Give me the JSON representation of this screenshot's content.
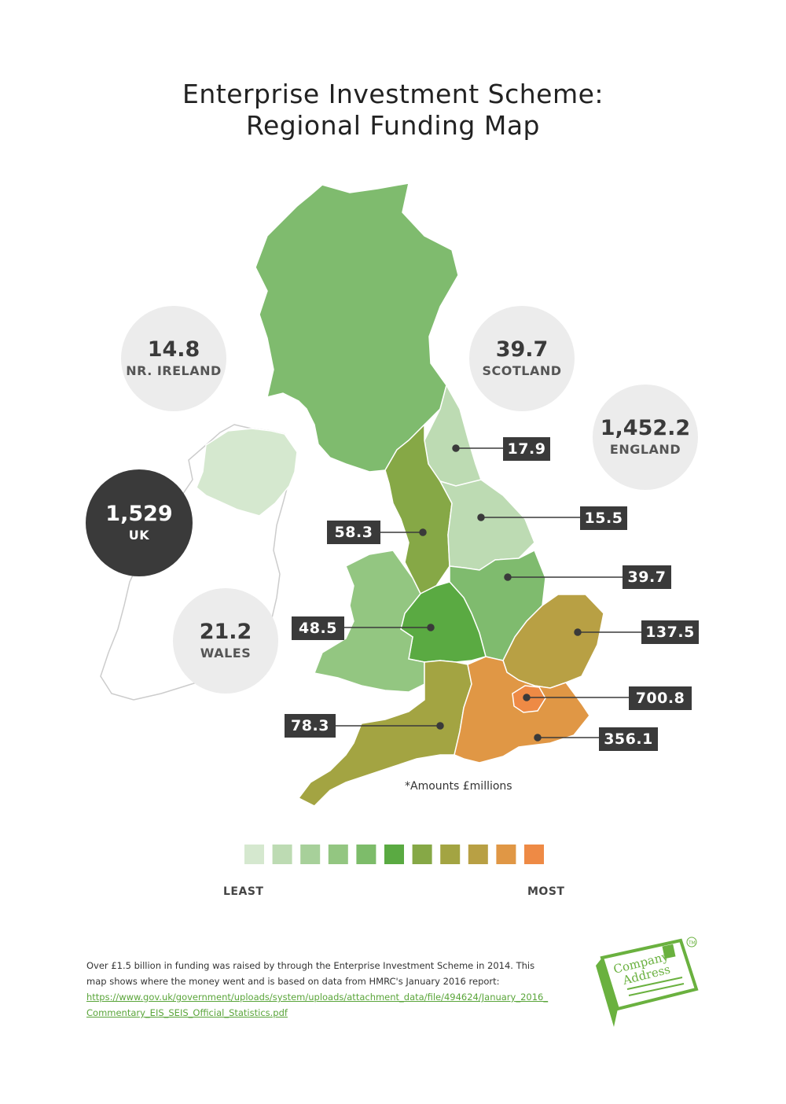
{
  "title_line1": "Enterprise Investment Scheme:",
  "title_line2": "Regional Funding Map",
  "circles": {
    "nireland": {
      "value": "14.8",
      "label": "NR. IRELAND"
    },
    "scotland": {
      "value": "39.7",
      "label": "SCOTLAND"
    },
    "england": {
      "value": "1,452.2",
      "label": "ENGLAND"
    },
    "uk": {
      "value": "1,529",
      "label": "UK"
    },
    "wales": {
      "value": "21.2",
      "label": "WALES"
    }
  },
  "callouts": {
    "north_east": "17.9",
    "yorkshire": "15.5",
    "north_west": "58.3",
    "east_midlands": "39.7",
    "west_midlands": "48.5",
    "east_of_england": "137.5",
    "london": "700.8",
    "south_west": "78.3",
    "south_east": "356.1"
  },
  "note": "*Amounts £millions",
  "legend": {
    "least": "LEAST",
    "most": "MOST",
    "colors": [
      "#d5e8cf",
      "#bddbb3",
      "#a7d09a",
      "#93c681",
      "#7dbc6a",
      "#5aaa42",
      "#86a846",
      "#a3a442",
      "#b8a044",
      "#e09745",
      "#ee8a45"
    ]
  },
  "colors": {
    "scotland": "#7fbb6e",
    "nireland": "#d5e8cf",
    "ireland_outline": "#cccccc",
    "north_east": "#bddbb3",
    "yorkshire": "#bddbb3",
    "north_west": "#86a846",
    "east_midlands": "#7fbb6e",
    "west_midlands": "#5aaa42",
    "wales": "#93c681",
    "east_of_england": "#b8a044",
    "london": "#ee8a45",
    "south_east": "#e09745",
    "south_west": "#a3a442"
  },
  "footer": {
    "line1": "Over £1.5 billion in funding was raised by through the Enterprise Investment Scheme  in 2014. This",
    "line2": "map shows where the money went and is based on data from HMRC's January 2016 report:",
    "link": "https://www.gov.uk/government/uploads/system/uploads/attachment_data/file/494624/January_2016_Commentary_EIS_SEIS_Official_Statistics.pdf"
  },
  "logo": {
    "line1": "Company",
    "line2": "Address",
    "mark": "TM",
    "color": "#6ab13f"
  }
}
